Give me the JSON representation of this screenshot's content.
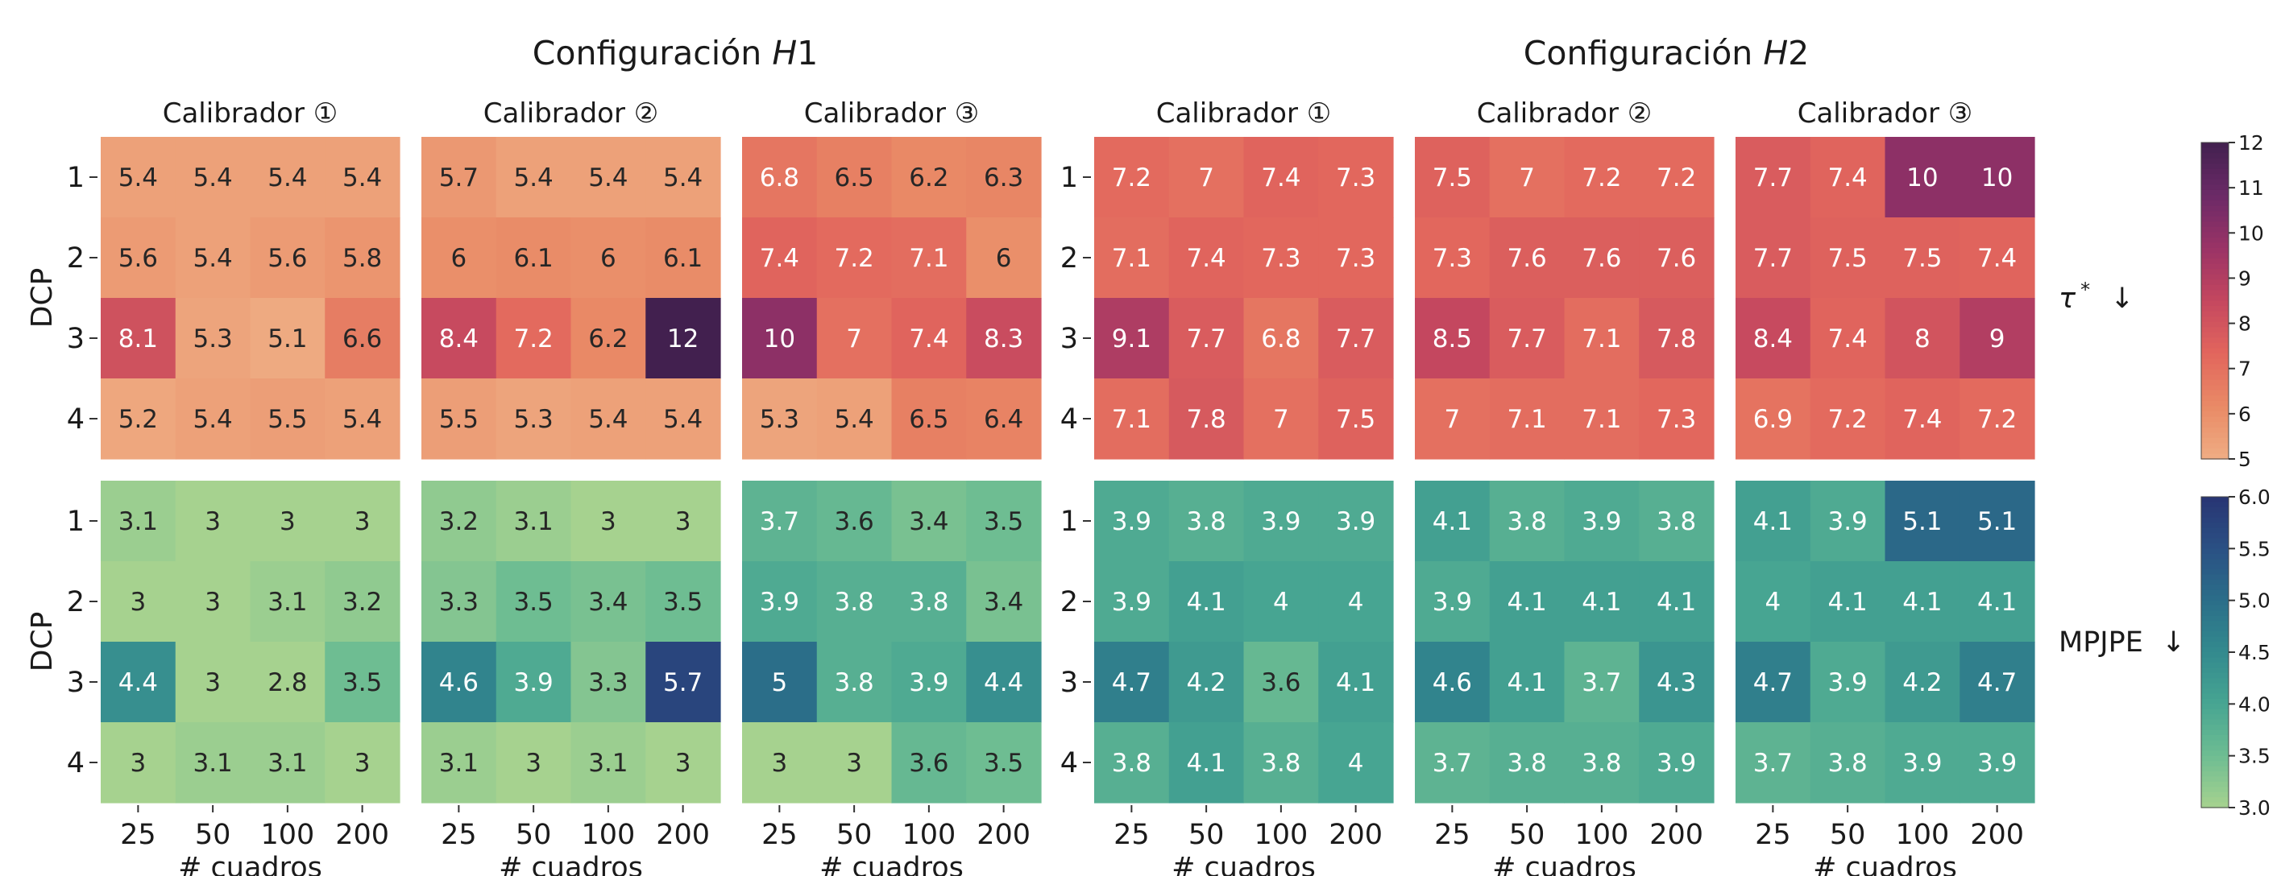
{
  "group_titles": [
    {
      "prefix": "Configuración ",
      "italic": "H",
      "suffix": "1"
    },
    {
      "prefix": "Configuración ",
      "italic": "H",
      "suffix": "2"
    }
  ],
  "panel_titles": [
    "Calibrador ①",
    "Calibrador ②",
    "Calibrador ③"
  ],
  "ylabel": "DCP",
  "xlabel": "# cuadros",
  "row_labels": [
    "1",
    "2",
    "3",
    "4"
  ],
  "col_labels": [
    "25",
    "50",
    "100",
    "200"
  ],
  "metric_labels": [
    {
      "symbol": "τ",
      "sup": "*",
      "arrow": "↓"
    },
    {
      "symbol": "MPJPE",
      "sup": "",
      "arrow": "↓"
    }
  ],
  "chart_data": [
    {
      "type": "heatmap",
      "metric": "τ*",
      "vrange": [
        5,
        12
      ],
      "colorbar_ticks": [
        "5",
        "6",
        "7",
        "8",
        "9",
        "10",
        "11",
        "12"
      ],
      "colormap": [
        "#efad83",
        "#e98a66",
        "#e2665d",
        "#c4475f",
        "#9a3366",
        "#6b2a67",
        "#42204f"
      ],
      "rows": [
        "1",
        "2",
        "3",
        "4"
      ],
      "columns": [
        "25",
        "50",
        "100",
        "200"
      ],
      "panels": [
        {
          "group": "H1",
          "calibrator": "①",
          "values": [
            [
              5.4,
              5.4,
              5.4,
              5.4
            ],
            [
              5.6,
              5.4,
              5.6,
              5.8
            ],
            [
              8.1,
              5.3,
              5.1,
              6.6
            ],
            [
              5.2,
              5.4,
              5.5,
              5.4
            ]
          ]
        },
        {
          "group": "H1",
          "calibrator": "②",
          "values": [
            [
              5.7,
              5.4,
              5.4,
              5.4
            ],
            [
              6,
              6.1,
              6,
              6.1
            ],
            [
              8.4,
              7.2,
              6.2,
              12
            ],
            [
              5.5,
              5.3,
              5.4,
              5.4
            ]
          ]
        },
        {
          "group": "H1",
          "calibrator": "③",
          "values": [
            [
              6.8,
              6.5,
              6.2,
              6.3
            ],
            [
              7.4,
              7.2,
              7.1,
              6
            ],
            [
              10,
              7,
              7.4,
              8.3
            ],
            [
              5.3,
              5.4,
              6.5,
              6.4
            ]
          ]
        },
        {
          "group": "H2",
          "calibrator": "①",
          "values": [
            [
              7.2,
              7,
              7.4,
              7.3
            ],
            [
              7.1,
              7.4,
              7.3,
              7.3
            ],
            [
              9.1,
              7.7,
              6.8,
              7.7
            ],
            [
              7.1,
              7.8,
              7,
              7.5
            ]
          ]
        },
        {
          "group": "H2",
          "calibrator": "②",
          "values": [
            [
              7.5,
              7,
              7.2,
              7.2
            ],
            [
              7.3,
              7.6,
              7.6,
              7.6
            ],
            [
              8.5,
              7.7,
              7.1,
              7.8
            ],
            [
              7,
              7.1,
              7.1,
              7.3
            ]
          ]
        },
        {
          "group": "H2",
          "calibrator": "③",
          "values": [
            [
              7.7,
              7.4,
              10,
              10
            ],
            [
              7.7,
              7.5,
              7.5,
              7.4
            ],
            [
              8.4,
              7.4,
              8,
              9
            ],
            [
              6.9,
              7.2,
              7.4,
              7.2
            ]
          ]
        }
      ]
    },
    {
      "type": "heatmap",
      "metric": "MPJPE",
      "vrange": [
        3.0,
        6.0
      ],
      "colorbar_ticks": [
        "3.0",
        "3.5",
        "4.0",
        "4.5",
        "5.0",
        "5.5",
        "6.0"
      ],
      "colormap": [
        "#a6d28f",
        "#6ebd92",
        "#47a592",
        "#338a8e",
        "#2b6e89",
        "#2a5084",
        "#283573"
      ],
      "rows": [
        "1",
        "2",
        "3",
        "4"
      ],
      "columns": [
        "25",
        "50",
        "100",
        "200"
      ],
      "panels": [
        {
          "group": "H1",
          "calibrator": "①",
          "values": [
            [
              3.1,
              3,
              3,
              3
            ],
            [
              3,
              3,
              3.1,
              3.2
            ],
            [
              4.4,
              3,
              2.8,
              3.5
            ],
            [
              3,
              3.1,
              3.1,
              3
            ]
          ]
        },
        {
          "group": "H1",
          "calibrator": "②",
          "values": [
            [
              3.2,
              3.1,
              3,
              3
            ],
            [
              3.3,
              3.5,
              3.4,
              3.5
            ],
            [
              4.6,
              3.9,
              3.3,
              5.7
            ],
            [
              3.1,
              3,
              3.1,
              3
            ]
          ]
        },
        {
          "group": "H1",
          "calibrator": "③",
          "values": [
            [
              3.7,
              3.6,
              3.4,
              3.5
            ],
            [
              3.9,
              3.8,
              3.8,
              3.4
            ],
            [
              5,
              3.8,
              3.9,
              4.4
            ],
            [
              3,
              3,
              3.6,
              3.5
            ]
          ]
        },
        {
          "group": "H2",
          "calibrator": "①",
          "values": [
            [
              3.9,
              3.8,
              3.9,
              3.9
            ],
            [
              3.9,
              4.1,
              4,
              4
            ],
            [
              4.7,
              4.2,
              3.6,
              4.1
            ],
            [
              3.8,
              4.1,
              3.8,
              4
            ]
          ]
        },
        {
          "group": "H2",
          "calibrator": "②",
          "values": [
            [
              4.1,
              3.8,
              3.9,
              3.8
            ],
            [
              3.9,
              4.1,
              4.1,
              4.1
            ],
            [
              4.6,
              4.1,
              3.7,
              4.3
            ],
            [
              3.7,
              3.8,
              3.8,
              3.9
            ]
          ]
        },
        {
          "group": "H2",
          "calibrator": "③",
          "values": [
            [
              4.1,
              3.9,
              5.1,
              5.1
            ],
            [
              4,
              4.1,
              4.1,
              4.1
            ],
            [
              4.7,
              3.9,
              4.2,
              4.7
            ],
            [
              3.7,
              3.8,
              3.9,
              3.9
            ]
          ]
        }
      ]
    }
  ]
}
